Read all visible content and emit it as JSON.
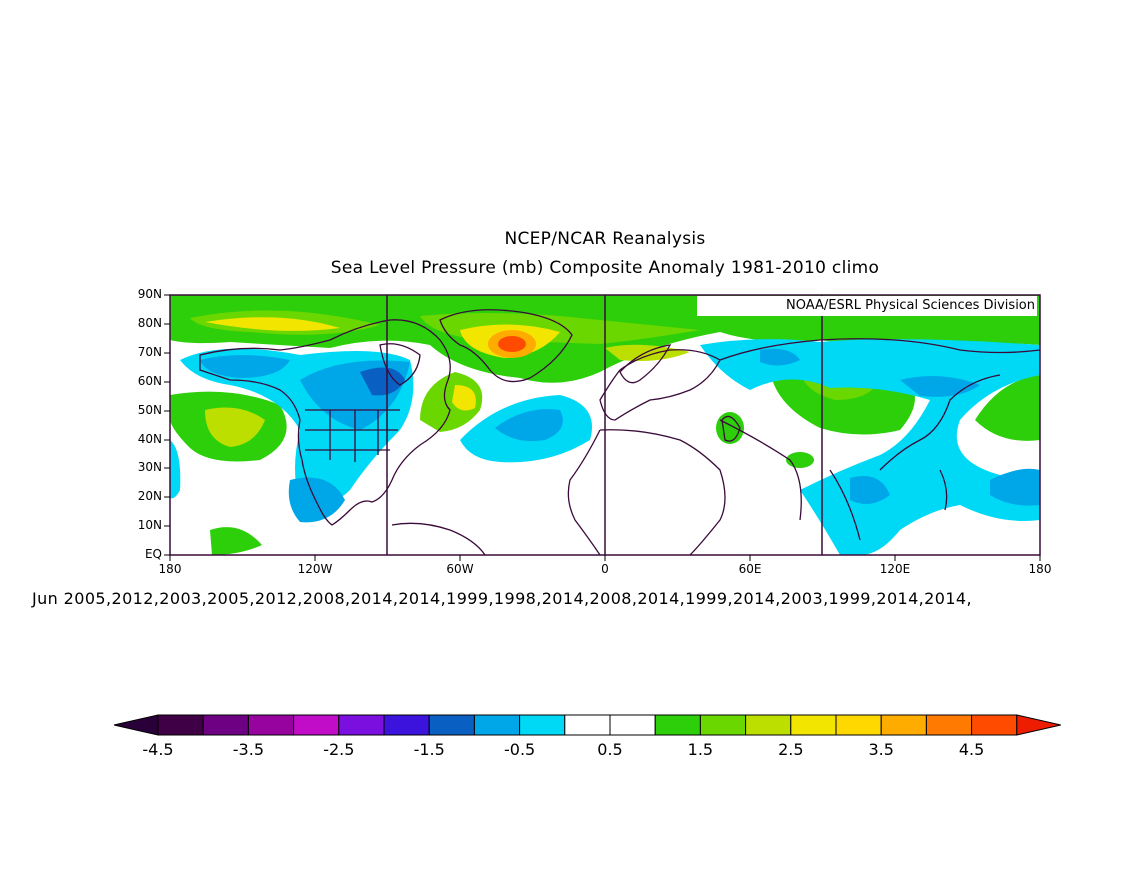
{
  "title": "NCEP/NCAR Reanalysis",
  "subtitle": "Sea Level Pressure (mb) Composite Anomaly 1981-2010 climo",
  "credit": "NOAA/ESRL Physical Sciences Division",
  "date_line": "Jun 2005,2012,2003,2005,2012,2008,2014,2014,1999,1998,2014,2008,2014,1999,2014,2003,1999,2014,2014,",
  "lat_ticks": [
    "90N",
    "80N",
    "70N",
    "60N",
    "50N",
    "40N",
    "30N",
    "20N",
    "10N",
    "EQ"
  ],
  "lon_ticks": [
    "180",
    "120W",
    "60W",
    "0",
    "60E",
    "120E",
    "180"
  ],
  "colorbar": {
    "labels": [
      "-4.5",
      "-3.5",
      "-2.5",
      "-1.5",
      "-0.5",
      "0.5",
      "1.5",
      "2.5",
      "3.5",
      "4.5"
    ],
    "colors": [
      "#3f0046",
      "#6e0083",
      "#96039e",
      "#c10dc8",
      "#7a0fe0",
      "#3b13dc",
      "#0a5fc2",
      "#00a7e8",
      "#00d9f5",
      "#ffffff",
      "#ffffff",
      "#2ccf0a",
      "#6ad700",
      "#bcdf00",
      "#f2e600",
      "#ffd800",
      "#ffac00",
      "#ff7a00",
      "#ff4b00"
    ],
    "under_color": "#2a0038",
    "over_color": "#ee1c00"
  }
}
